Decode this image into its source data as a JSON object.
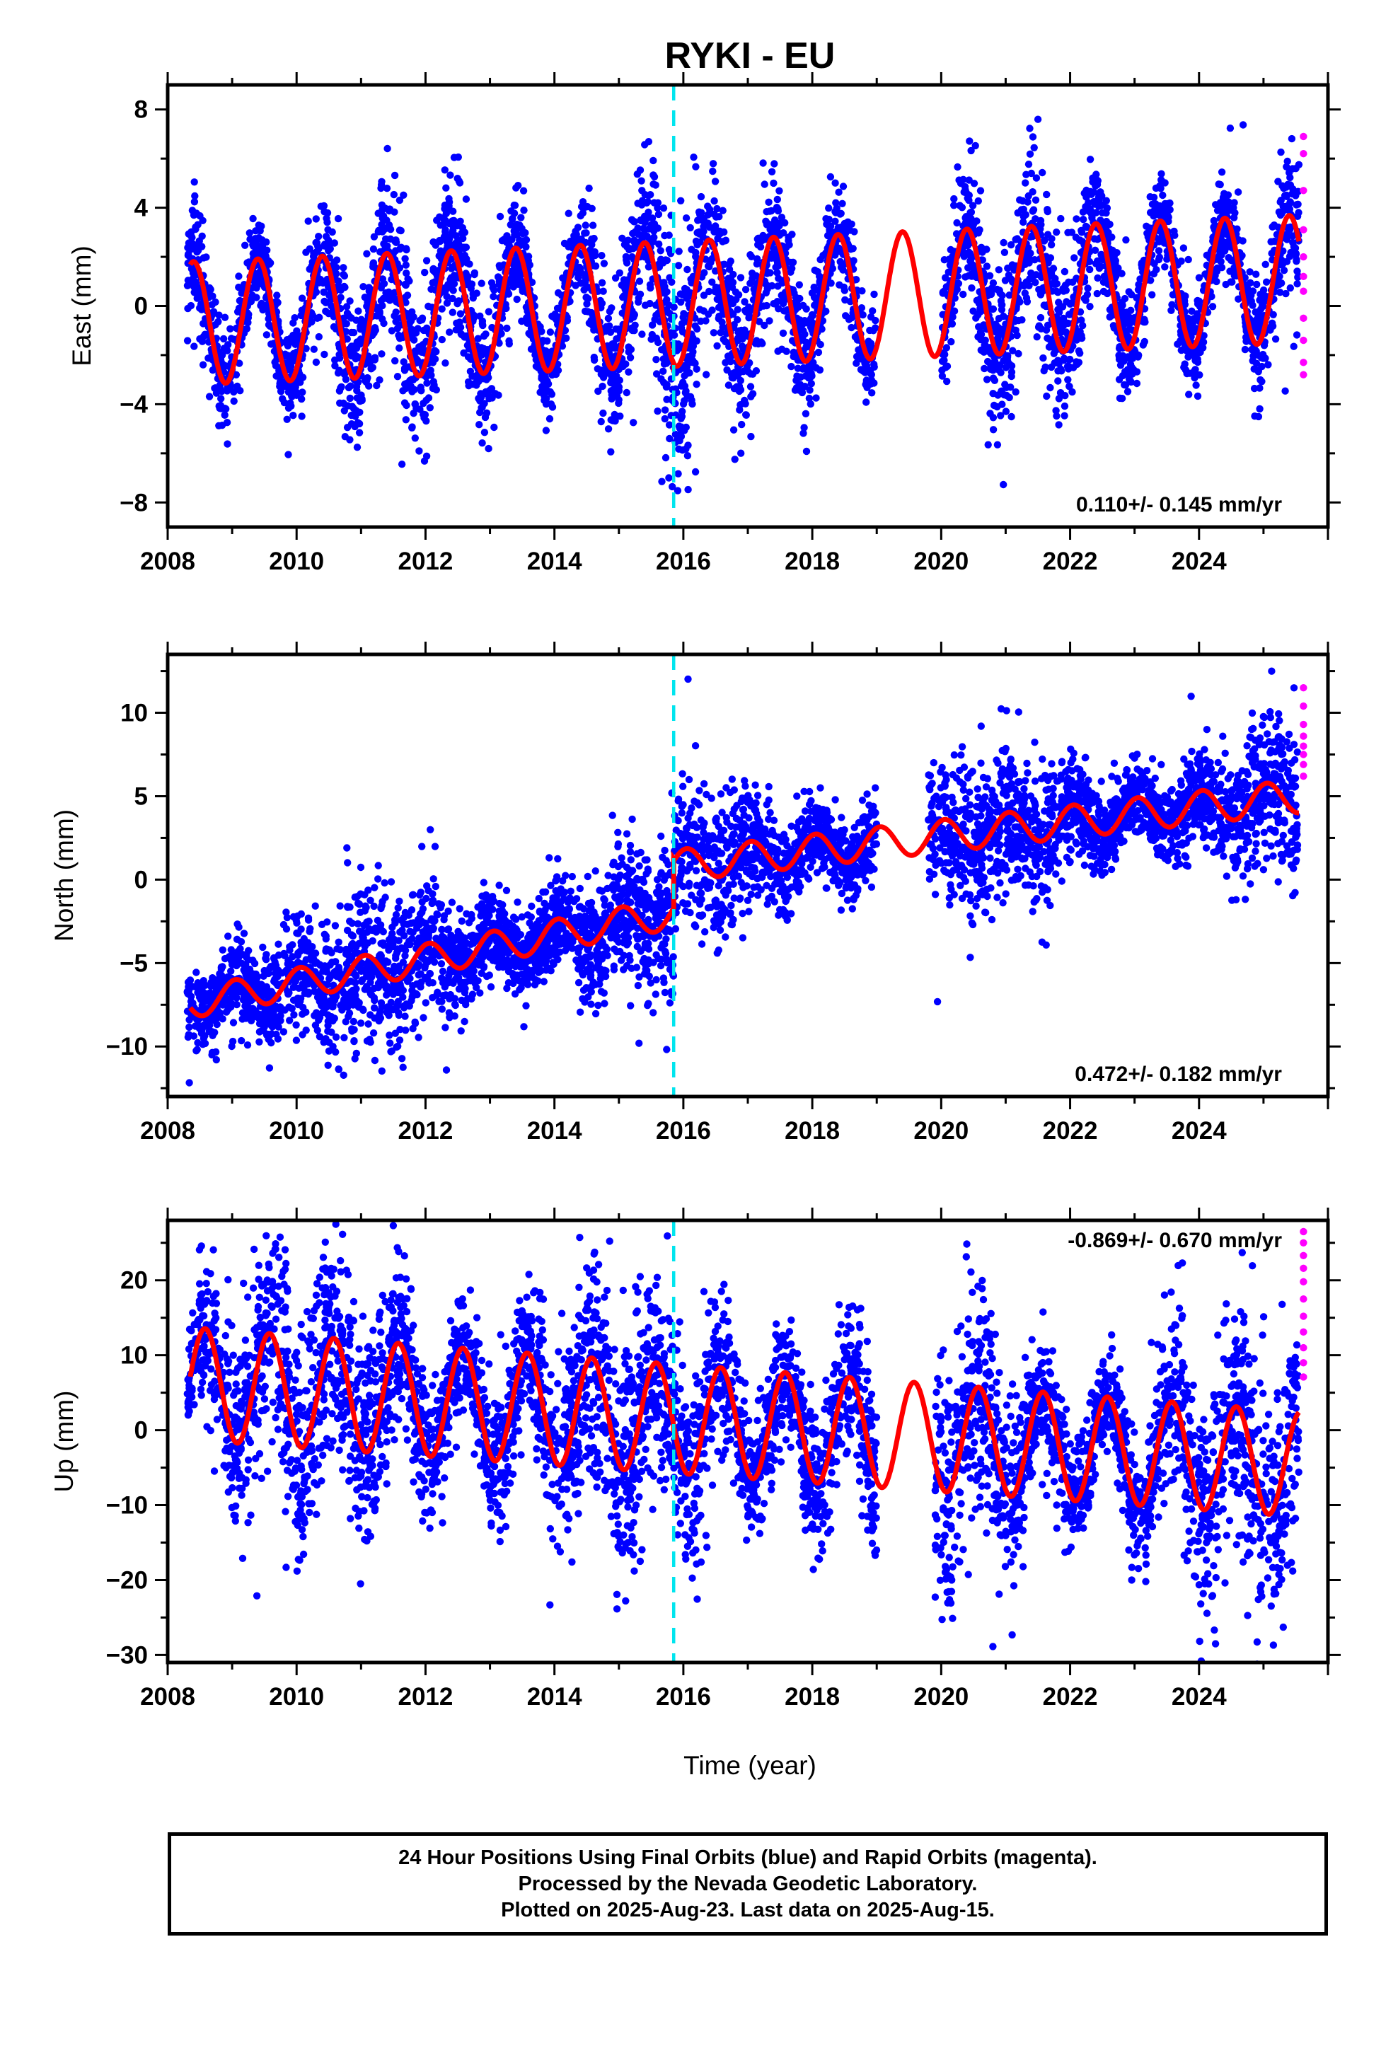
{
  "title": "RYKI - EU",
  "xlabel": "Time (year)",
  "colors": {
    "final": "#0000ff",
    "rapid": "#ff00ff",
    "model": "#ff0000",
    "offset": "#00e5ee"
  },
  "chart_data": [
    {
      "type": "scatter",
      "panel": "east",
      "ylabel": "East (mm)",
      "rate_label": "0.110+/- 0.145 mm/yr",
      "xlim": [
        2008,
        2026
      ],
      "ylim": [
        -9,
        9
      ],
      "xticks": [
        2008,
        2010,
        2012,
        2014,
        2016,
        2018,
        2020,
        2022,
        2024
      ],
      "yticks": [
        -8,
        -4,
        0,
        4,
        8
      ],
      "offset_year": 2015.85,
      "data_gap": [
        2019.0,
        2020.0
      ],
      "model": {
        "start": 2008.35,
        "end": 2025.55,
        "amp_start": 2.5,
        "amp_end": 2.6,
        "phase_peak": 0.4,
        "step": 0,
        "trend": 0.11,
        "base": -0.7,
        "base_end": 1.1
      },
      "final_points": {
        "count": 5000,
        "start": 2008.3,
        "end": 2025.55,
        "scatter": 1.3,
        "color": "final"
      },
      "rapid_points": {
        "x": 2025.62,
        "y": [
          6.9,
          6.2,
          4.7,
          3.1,
          2.0,
          1.2,
          0.6,
          -0.5,
          -1.4,
          -2.3,
          -2.8
        ]
      },
      "xtick_labels": [
        "2008",
        "2010",
        "2012",
        "2014",
        "2016",
        "2018",
        "2020",
        "2022",
        "2024"
      ],
      "ytick_labels": [
        "−8",
        "−4",
        "0",
        "4",
        "8"
      ]
    },
    {
      "type": "scatter",
      "panel": "north",
      "ylabel": "North (mm)",
      "rate_label": "0.472+/- 0.182 mm/yr",
      "xlim": [
        2008,
        2026
      ],
      "ylim": [
        -13,
        13.5
      ],
      "xticks": [
        2008,
        2010,
        2012,
        2014,
        2016,
        2018,
        2020,
        2022,
        2024
      ],
      "yticks": [
        -10,
        -5,
        0,
        5,
        10
      ],
      "offset_year": 2015.85,
      "data_gap": [
        2019.0,
        2019.8
      ],
      "model": {
        "start": 2008.35,
        "end": 2025.55,
        "amp_start": 0.9,
        "amp_end": 1.0,
        "phase_peak": 0.05,
        "step": 5.0,
        "trend": 0.472,
        "base": -7.4,
        "base_end": 5.0
      },
      "final_points": {
        "count": 5000,
        "start": 2008.3,
        "end": 2025.55,
        "scatter": 1.7,
        "color": "final"
      },
      "rapid_points": {
        "x": 2025.62,
        "y": [
          11.5,
          10.4,
          9.3,
          8.6,
          8.0,
          7.5,
          6.9,
          6.2
        ]
      },
      "xtick_labels": [
        "2008",
        "2010",
        "2012",
        "2014",
        "2016",
        "2018",
        "2020",
        "2022",
        "2024"
      ],
      "ytick_labels": [
        "−10",
        "−5",
        "0",
        "5",
        "10"
      ]
    },
    {
      "type": "scatter",
      "panel": "up",
      "ylabel": "Up (mm)",
      "rate_label": "-0.869+/- 0.670 mm/yr",
      "xlim": [
        2008,
        2026
      ],
      "ylim": [
        -31,
        28
      ],
      "xticks": [
        2008,
        2010,
        2012,
        2014,
        2016,
        2018,
        2020,
        2022,
        2024
      ],
      "yticks": [
        -30,
        -20,
        -10,
        0,
        10,
        20
      ],
      "offset_year": 2015.85,
      "data_gap": [
        2019.0,
        2019.9
      ],
      "model": {
        "start": 2008.35,
        "end": 2025.55,
        "amp_start": 7.5,
        "amp_end": 7.0,
        "phase_peak": 0.58,
        "step": 0,
        "trend": -0.869,
        "base": 6.2,
        "base_end": -4.5
      },
      "final_points": {
        "count": 5000,
        "start": 2008.3,
        "end": 2025.55,
        "scatter": 6.0,
        "color": "final"
      },
      "rapid_points": {
        "x": 2025.62,
        "y": [
          26.5,
          25.0,
          23.3,
          21.6,
          19.8,
          17.5,
          15.2,
          13.1,
          11.0,
          9.0,
          7.1
        ]
      },
      "xtick_labels": [
        "2008",
        "2010",
        "2012",
        "2014",
        "2016",
        "2018",
        "2020",
        "2022",
        "2024"
      ],
      "ytick_labels": [
        "−30",
        "−20",
        "−10",
        "0",
        "10",
        "20"
      ]
    }
  ],
  "footer": {
    "line1": "24 Hour Positions Using Final Orbits (blue) and Rapid Orbits (magenta).",
    "line2": "Processed by the Nevada Geodetic Laboratory.",
    "line3": "Plotted on 2025-Aug-23. Last data on 2025-Aug-15."
  }
}
